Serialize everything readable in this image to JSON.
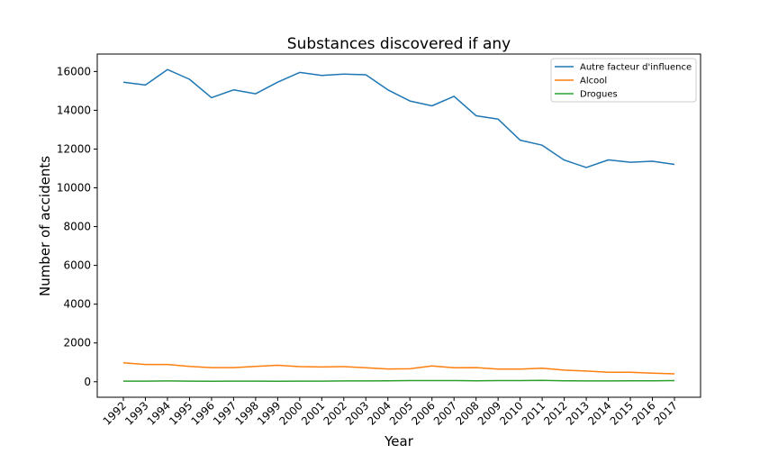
{
  "chart_data": {
    "type": "line",
    "title": "Substances discovered if any",
    "xlabel": "Year",
    "ylabel": "Number of accidents",
    "x": [
      "1992",
      "1993",
      "1994",
      "1995",
      "1996",
      "1997",
      "1998",
      "1999",
      "2000",
      "2001",
      "2002",
      "2003",
      "2004",
      "2005",
      "2006",
      "2007",
      "2008",
      "2009",
      "2010",
      "2011",
      "2012",
      "2013",
      "2014",
      "2015",
      "2016",
      "2017"
    ],
    "ylim": [
      -800,
      16900
    ],
    "yticks": [
      0,
      2000,
      4000,
      6000,
      8000,
      10000,
      12000,
      14000,
      16000
    ],
    "grid": false,
    "legend_position": "top-right",
    "series": [
      {
        "name": "Autre facteur d'influence",
        "color": "#1f77b4",
        "values": [
          15450,
          15300,
          16100,
          15600,
          14650,
          15050,
          14850,
          15450,
          15950,
          15800,
          15870,
          15830,
          15050,
          14480,
          14230,
          14720,
          13720,
          13540,
          12460,
          12200,
          11430,
          11050,
          11440,
          11320,
          11370,
          11210
        ]
      },
      {
        "name": "Alcool",
        "color": "#ff7f0e",
        "values": [
          980,
          890,
          890,
          790,
          730,
          730,
          790,
          850,
          780,
          760,
          780,
          720,
          660,
          670,
          810,
          720,
          730,
          650,
          650,
          700,
          600,
          550,
          490,
          490,
          440,
          410
        ]
      },
      {
        "name": "Drogues",
        "color": "#2ca02c",
        "values": [
          30,
          30,
          40,
          30,
          20,
          30,
          30,
          20,
          30,
          30,
          40,
          40,
          50,
          60,
          60,
          60,
          50,
          60,
          60,
          70,
          50,
          40,
          40,
          50,
          50,
          60
        ]
      }
    ]
  }
}
